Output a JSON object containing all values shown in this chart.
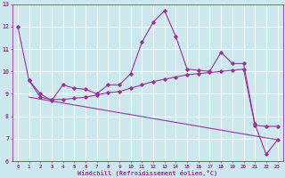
{
  "xlabel": "Windchill (Refroidissement éolien,°C)",
  "bg_color": "#cce8ee",
  "grid_color": "#ffffff",
  "line_color": "#993399",
  "spine_color": "#993399",
  "xlim": [
    -0.5,
    23.5
  ],
  "ylim": [
    6,
    13
  ],
  "xticks": [
    0,
    1,
    2,
    3,
    4,
    5,
    6,
    7,
    8,
    9,
    10,
    11,
    12,
    13,
    14,
    15,
    16,
    17,
    18,
    19,
    20,
    21,
    22,
    23
  ],
  "yticks": [
    6,
    7,
    8,
    9,
    10,
    11,
    12,
    13
  ],
  "line1_x": [
    0,
    1,
    2,
    3,
    4,
    5,
    6,
    7,
    8,
    9,
    10,
    11,
    12,
    13,
    14,
    15,
    16,
    17,
    18,
    19,
    20,
    21,
    22,
    23
  ],
  "line1_y": [
    12.0,
    9.6,
    9.0,
    8.7,
    9.4,
    9.25,
    9.2,
    9.0,
    9.4,
    9.4,
    9.9,
    11.3,
    12.2,
    12.7,
    11.55,
    10.1,
    10.05,
    10.0,
    10.85,
    10.35,
    10.35,
    7.65,
    6.3,
    6.95
  ],
  "line2_x": [
    1,
    2,
    3,
    4,
    5,
    6,
    7,
    8,
    9,
    10,
    11,
    12,
    13,
    14,
    15,
    16,
    17,
    18,
    19,
    20,
    21,
    22,
    23
  ],
  "line2_y": [
    9.6,
    8.85,
    8.75,
    8.75,
    8.8,
    8.85,
    8.95,
    9.05,
    9.1,
    9.25,
    9.4,
    9.55,
    9.65,
    9.75,
    9.85,
    9.9,
    9.95,
    10.0,
    10.05,
    10.1,
    7.6,
    7.55,
    7.55
  ],
  "line3_x": [
    1,
    23
  ],
  "line3_y": [
    8.85,
    6.95
  ]
}
